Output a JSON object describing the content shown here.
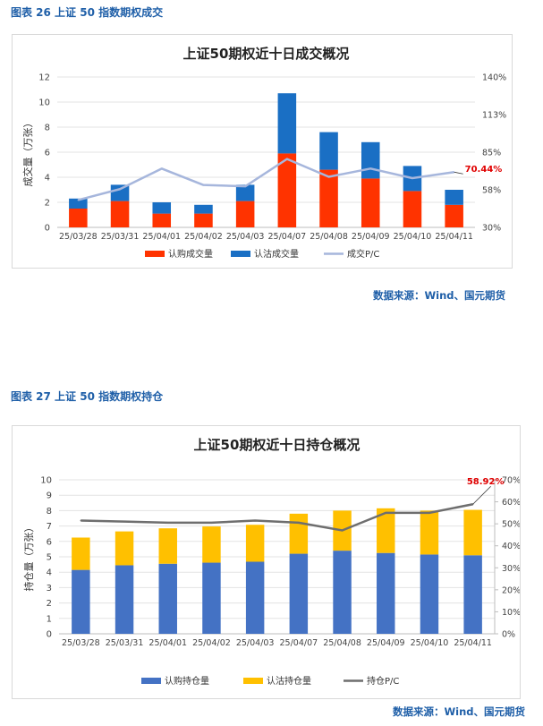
{
  "captions": {
    "fig26": "图表 26  上证 50 指数期权成交",
    "fig27": "图表 27  上证 50 指数期权持仓",
    "source1": "数据来源：Wind、国元期货",
    "source2": "数据来源：Wind、国元期货"
  },
  "colors": {
    "call": "#ff3300",
    "put": "#1a6fc4",
    "pcr1": "#a6b6dc",
    "call2": "#4472c4",
    "put2": "#ffc000",
    "pcr2": "#6e6e6e",
    "highlight": "#e00000"
  },
  "chart_data": [
    {
      "type": "bar",
      "stacked": true,
      "title": "上证50期权近十日成交概况",
      "ylabel": "成交量（万张）",
      "ylim": [
        0,
        12
      ],
      "yticks": [
        "0",
        "2",
        "4",
        "6",
        "8",
        "10",
        "12"
      ],
      "y2lim": [
        30,
        140
      ],
      "y2ticks": [
        "30%",
        "58%",
        "85%",
        "113%",
        "140%"
      ],
      "y2tickValues": [
        30,
        57.5,
        85,
        112.5,
        140
      ],
      "categories": [
        "25/03/28",
        "25/03/31",
        "25/04/01",
        "25/04/02",
        "25/04/03",
        "25/04/07",
        "25/04/08",
        "25/04/09",
        "25/04/10",
        "25/04/11"
      ],
      "series": [
        {
          "name": "认购成交量",
          "values": [
            1.5,
            2.1,
            1.1,
            1.1,
            2.1,
            5.9,
            4.6,
            3.9,
            2.9,
            1.8
          ]
        },
        {
          "name": "认沽成交量",
          "values": [
            0.8,
            1.3,
            0.9,
            0.7,
            1.3,
            4.8,
            3.0,
            2.9,
            2.0,
            1.2
          ]
        }
      ],
      "line": {
        "name": "成交P/C",
        "values": [
          50,
          58,
          73,
          61,
          60,
          80,
          67,
          73,
          66,
          70.44
        ]
      },
      "annotation": {
        "text": "70.44%",
        "index": 9
      },
      "legend": "bottom"
    },
    {
      "type": "bar",
      "stacked": true,
      "title": "上证50期权近十日持仓概况",
      "ylabel": "持仓量（万张）",
      "ylim": [
        0,
        10
      ],
      "yticks": [
        "0",
        "1",
        "2",
        "3",
        "4",
        "5",
        "6",
        "7",
        "8",
        "9",
        "10"
      ],
      "y2lim": [
        0,
        70
      ],
      "y2ticks": [
        "0%",
        "10%",
        "20%",
        "30%",
        "40%",
        "50%",
        "60%",
        "70%"
      ],
      "y2tickValues": [
        0,
        10,
        20,
        30,
        40,
        50,
        60,
        70
      ],
      "categories": [
        "25/03/28",
        "25/03/31",
        "25/04/01",
        "25/04/02",
        "25/04/03",
        "25/04/07",
        "25/04/08",
        "25/04/09",
        "25/04/10",
        "25/04/11"
      ],
      "series": [
        {
          "name": "认购持仓量",
          "values": [
            4.15,
            4.45,
            4.55,
            4.62,
            4.68,
            5.2,
            5.4,
            5.25,
            5.15,
            5.1
          ]
        },
        {
          "name": "认沽持仓量",
          "values": [
            2.1,
            2.2,
            2.3,
            2.35,
            2.4,
            2.6,
            2.6,
            2.9,
            2.85,
            2.95
          ]
        }
      ],
      "line": {
        "name": "持仓P/C",
        "values": [
          51.5,
          51,
          50.5,
          50.5,
          51.5,
          50.5,
          47,
          55,
          55,
          58.92
        ]
      },
      "annotation": {
        "text": "58.92%",
        "index": 9
      },
      "legend": "bottom"
    }
  ]
}
